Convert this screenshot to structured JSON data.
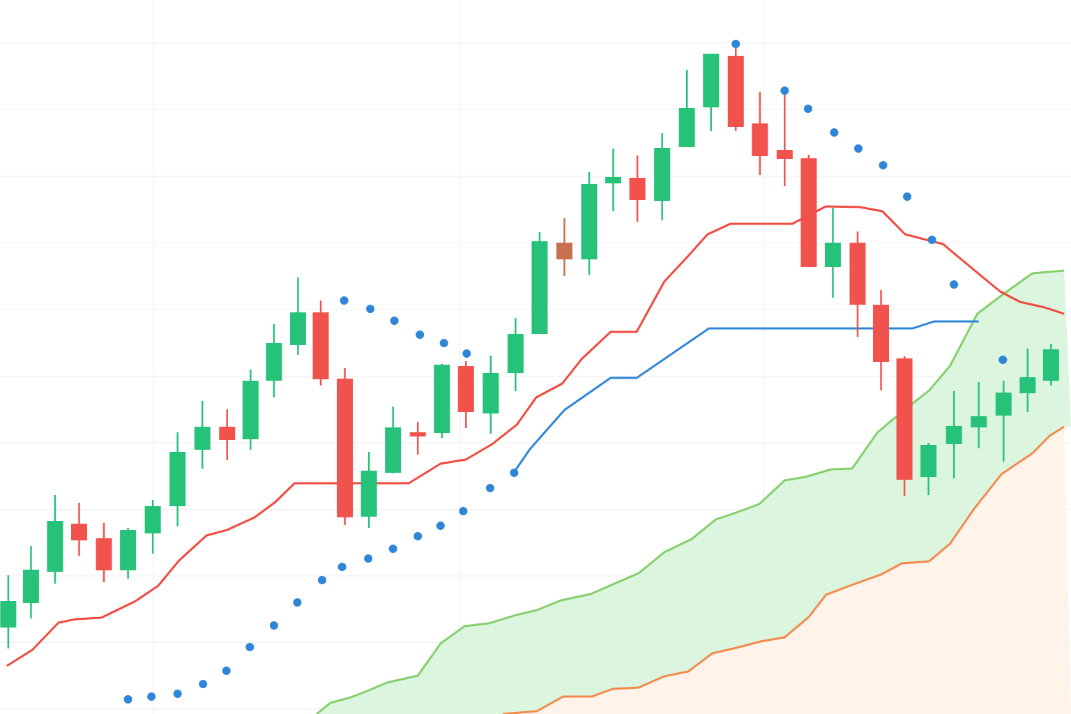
{
  "chart_data": {
    "type": "candlestick",
    "grid": true,
    "colors": {
      "up": "#27c27a",
      "down": "#f2524c",
      "neutral": "#c8714f",
      "psar": "#2f86d6",
      "conversion_line": "#ef4a3f",
      "base_line": "#2f86d6",
      "span_a": "#85cf6a",
      "span_b": "#f28a4c",
      "cloud_bull_fill": "#dbf5df",
      "cloud_bear_fill": "#fff3ea",
      "grid": "#eeeeee"
    },
    "y_range": [
      0,
      1024
    ],
    "x_range": [
      -10,
      1546
    ],
    "candles": [
      {
        "x": 2,
        "o": 900,
        "h": 930,
        "l": 825,
        "c": 862
      },
      {
        "x": 35,
        "o": 865,
        "h": 887,
        "l": 783,
        "c": 817
      },
      {
        "x": 70,
        "o": 820,
        "h": 837,
        "l": 710,
        "c": 747
      },
      {
        "x": 105,
        "o": 751,
        "h": 797,
        "l": 721,
        "c": 775
      },
      {
        "x": 141,
        "o": 772,
        "h": 835,
        "l": 750,
        "c": 818
      },
      {
        "x": 176,
        "o": 818,
        "h": 830,
        "l": 757,
        "c": 760
      },
      {
        "x": 212,
        "o": 765,
        "h": 794,
        "l": 717,
        "c": 726
      },
      {
        "x": 248,
        "o": 726,
        "h": 755,
        "l": 620,
        "c": 648
      },
      {
        "x": 284,
        "o": 645,
        "h": 672,
        "l": 575,
        "c": 612
      },
      {
        "x": 320,
        "o": 612,
        "h": 660,
        "l": 587,
        "c": 631
      },
      {
        "x": 354,
        "o": 630,
        "h": 645,
        "l": 530,
        "c": 546
      },
      {
        "x": 388,
        "o": 546,
        "h": 570,
        "l": 465,
        "c": 492
      },
      {
        "x": 423,
        "o": 495,
        "h": 509,
        "l": 398,
        "c": 448
      },
      {
        "x": 456,
        "o": 448,
        "h": 553,
        "l": 431,
        "c": 544
      },
      {
        "x": 491,
        "o": 543,
        "h": 753,
        "l": 528,
        "c": 742
      },
      {
        "x": 526,
        "o": 741,
        "h": 757,
        "l": 648,
        "c": 675
      },
      {
        "x": 561,
        "o": 678,
        "h": 679,
        "l": 583,
        "c": 613
      },
      {
        "x": 597,
        "o": 620,
        "h": 652,
        "l": 605,
        "c": 626
      },
      {
        "x": 632,
        "o": 621,
        "h": 628,
        "l": 522,
        "c": 523
      },
      {
        "x": 667,
        "o": 525,
        "h": 614,
        "l": 518,
        "c": 591
      },
      {
        "x": 703,
        "o": 593,
        "h": 622,
        "l": 510,
        "c": 535
      },
      {
        "x": 739,
        "o": 535,
        "h": 561,
        "l": 456,
        "c": 479
      },
      {
        "x": 774,
        "o": 479,
        "h": 479,
        "l": 333,
        "c": 346
      },
      {
        "x": 810,
        "o": 348,
        "h": 396,
        "l": 313,
        "c": 372,
        "neutral": true
      },
      {
        "x": 846,
        "o": 372,
        "h": 394,
        "l": 247,
        "c": 264
      },
      {
        "x": 881,
        "o": 263,
        "h": 303,
        "l": 213,
        "c": 254
      },
      {
        "x": 916,
        "o": 255,
        "h": 318,
        "l": 223,
        "c": 287
      },
      {
        "x": 952,
        "o": 288,
        "h": 316,
        "l": 191,
        "c": 212
      },
      {
        "x": 988,
        "o": 211,
        "h": 211,
        "l": 100,
        "c": 155
      },
      {
        "x": 1023,
        "o": 154,
        "h": 188,
        "l": 77,
        "c": 77
      },
      {
        "x": 1059,
        "o": 80,
        "h": 188,
        "l": 62,
        "c": 182
      },
      {
        "x": 1094,
        "o": 177,
        "h": 251,
        "l": 132,
        "c": 224
      },
      {
        "x": 1130,
        "o": 215,
        "h": 267,
        "l": 130,
        "c": 228
      },
      {
        "x": 1165,
        "o": 227,
        "h": 383,
        "l": 222,
        "c": 383
      },
      {
        "x": 1200,
        "o": 383,
        "h": 427,
        "l": 298,
        "c": 348
      },
      {
        "x": 1236,
        "o": 348,
        "h": 483,
        "l": 332,
        "c": 437
      },
      {
        "x": 1270,
        "o": 437,
        "h": 560,
        "l": 416,
        "c": 519
      },
      {
        "x": 1304,
        "o": 514,
        "h": 711,
        "l": 511,
        "c": 688
      },
      {
        "x": 1339,
        "o": 684,
        "h": 710,
        "l": 635,
        "c": 638
      },
      {
        "x": 1376,
        "o": 637,
        "h": 686,
        "l": 561,
        "c": 611
      },
      {
        "x": 1412,
        "o": 613,
        "h": 643,
        "l": 548,
        "c": 597
      },
      {
        "x": 1448,
        "o": 596,
        "h": 662,
        "l": 546,
        "c": 563
      },
      {
        "x": 1483,
        "o": 564,
        "h": 591,
        "l": 500,
        "c": 541
      },
      {
        "x": 1517,
        "o": 546,
        "h": 553,
        "l": 493,
        "c": 501
      }
    ],
    "psar": [
      [
        176,
        1003
      ],
      [
        210,
        999
      ],
      [
        248,
        995
      ],
      [
        285,
        981
      ],
      [
        319,
        962
      ],
      [
        353,
        928
      ],
      [
        388,
        897
      ],
      [
        422,
        864
      ],
      [
        458,
        832
      ],
      [
        487,
        813
      ],
      [
        525,
        801
      ],
      [
        561,
        787
      ],
      [
        597,
        769
      ],
      [
        630,
        754
      ],
      [
        663,
        733
      ],
      [
        702,
        700
      ],
      [
        737,
        678
      ],
      [
        490,
        431
      ],
      [
        528,
        443
      ],
      [
        563,
        460
      ],
      [
        600,
        480
      ],
      [
        635,
        492
      ],
      [
        668,
        507
      ],
      [
        1059,
        63
      ],
      [
        1130,
        130
      ],
      [
        1164,
        156
      ],
      [
        1202,
        190
      ],
      [
        1237,
        213
      ],
      [
        1273,
        237
      ],
      [
        1308,
        282
      ],
      [
        1344,
        344
      ],
      [
        1376,
        408
      ],
      [
        1447,
        516
      ]
    ],
    "conversion_line": [
      [
        0,
        955
      ],
      [
        37,
        932
      ],
      [
        75,
        893
      ],
      [
        100,
        888
      ],
      [
        137,
        886
      ],
      [
        187,
        862
      ],
      [
        220,
        840
      ],
      [
        250,
        804
      ],
      [
        290,
        768
      ],
      [
        320,
        760
      ],
      [
        360,
        742
      ],
      [
        390,
        720
      ],
      [
        418,
        693
      ],
      [
        456,
        693
      ],
      [
        584,
        693
      ],
      [
        630,
        665
      ],
      [
        667,
        659
      ],
      [
        705,
        637
      ],
      [
        741,
        609
      ],
      [
        769,
        570
      ],
      [
        807,
        550
      ],
      [
        835,
        515
      ],
      [
        877,
        476
      ],
      [
        915,
        476
      ],
      [
        955,
        404
      ],
      [
        990,
        367
      ],
      [
        1018,
        336
      ],
      [
        1051,
        321
      ],
      [
        1141,
        321
      ],
      [
        1190,
        296
      ],
      [
        1239,
        297
      ],
      [
        1272,
        303
      ],
      [
        1305,
        336
      ],
      [
        1336,
        344
      ],
      [
        1360,
        350
      ],
      [
        1400,
        383
      ],
      [
        1443,
        418
      ],
      [
        1472,
        433
      ],
      [
        1508,
        441
      ],
      [
        1536,
        450
      ]
    ],
    "base_line": [
      [
        737,
        677
      ],
      [
        760,
        644
      ],
      [
        810,
        588
      ],
      [
        877,
        542
      ],
      [
        915,
        542
      ],
      [
        1020,
        471
      ],
      [
        1240,
        471
      ],
      [
        1270,
        471
      ],
      [
        1316,
        471
      ],
      [
        1347,
        461
      ],
      [
        1412,
        461
      ]
    ],
    "span_a": [
      [
        450,
        1024
      ],
      [
        470,
        1008
      ],
      [
        500,
        1000
      ],
      [
        526,
        990
      ],
      [
        552,
        979
      ],
      [
        597,
        969
      ],
      [
        630,
        923
      ],
      [
        665,
        898
      ],
      [
        700,
        894
      ],
      [
        740,
        882
      ],
      [
        770,
        875
      ],
      [
        805,
        861
      ],
      [
        848,
        852
      ],
      [
        883,
        837
      ],
      [
        918,
        822
      ],
      [
        955,
        792
      ],
      [
        995,
        773
      ],
      [
        1030,
        745
      ],
      [
        1060,
        735
      ],
      [
        1093,
        723
      ],
      [
        1130,
        689
      ],
      [
        1160,
        684
      ],
      [
        1198,
        673
      ],
      [
        1228,
        672
      ],
      [
        1265,
        620
      ],
      [
        1305,
        587
      ],
      [
        1340,
        560
      ],
      [
        1370,
        525
      ],
      [
        1410,
        450
      ],
      [
        1450,
        420
      ],
      [
        1490,
        392
      ],
      [
        1536,
        388
      ]
    ],
    "span_b": [
      [
        720,
        1024
      ],
      [
        770,
        1020
      ],
      [
        808,
        999
      ],
      [
        850,
        999
      ],
      [
        880,
        988
      ],
      [
        918,
        986
      ],
      [
        955,
        970
      ],
      [
        990,
        963
      ],
      [
        1025,
        937
      ],
      [
        1060,
        929
      ],
      [
        1095,
        920
      ],
      [
        1130,
        914
      ],
      [
        1165,
        885
      ],
      [
        1190,
        853
      ],
      [
        1230,
        838
      ],
      [
        1270,
        824
      ],
      [
        1300,
        808
      ],
      [
        1340,
        805
      ],
      [
        1370,
        780
      ],
      [
        1405,
        730
      ],
      [
        1445,
        680
      ],
      [
        1490,
        650
      ],
      [
        1515,
        625
      ],
      [
        1536,
        612
      ]
    ]
  }
}
